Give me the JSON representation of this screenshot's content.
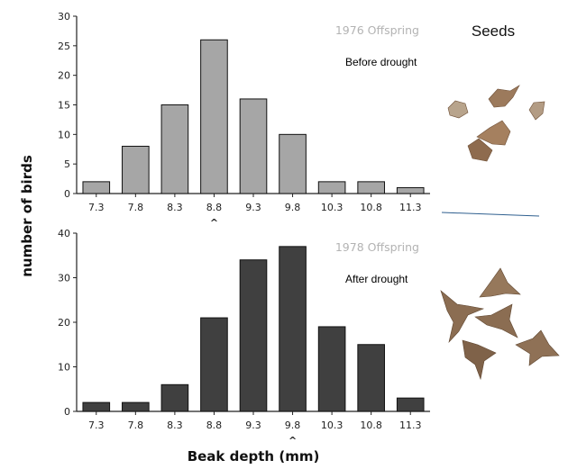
{
  "chart_data": [
    {
      "type": "bar",
      "title": "1976 Offspring",
      "annotation": "Before drought",
      "categories": [
        "7.3",
        "7.8",
        "8.3",
        "8.8",
        "9.3",
        "9.8",
        "10.3",
        "10.8",
        "11.3"
      ],
      "values": [
        2,
        8,
        15,
        26,
        16,
        10,
        2,
        2,
        1
      ],
      "ylim": [
        0,
        30
      ],
      "yticks": [
        0,
        5,
        10,
        15,
        20,
        25,
        30
      ],
      "mean_marker": "8.8",
      "bar_color": "#a6a6a6"
    },
    {
      "type": "bar",
      "title": "1978 Offspring",
      "annotation": "After drought",
      "categories": [
        "7.3",
        "7.8",
        "8.3",
        "8.8",
        "9.3",
        "9.8",
        "10.3",
        "10.8",
        "11.3"
      ],
      "values": [
        2,
        2,
        6,
        21,
        34,
        37,
        19,
        15,
        3
      ],
      "ylim": [
        0,
        40
      ],
      "yticks": [
        0,
        10,
        20,
        30,
        40
      ],
      "mean_marker": "9.8",
      "bar_color": "#404040"
    }
  ],
  "shared": {
    "ylabel": "number of birds",
    "xlabel": "Beak depth (mm)",
    "marker_symbol": "^"
  },
  "seeds": {
    "label": "Seeds",
    "top_image": "small-seeds-photo",
    "bottom_image": "large-spiky-seeds-photo"
  }
}
